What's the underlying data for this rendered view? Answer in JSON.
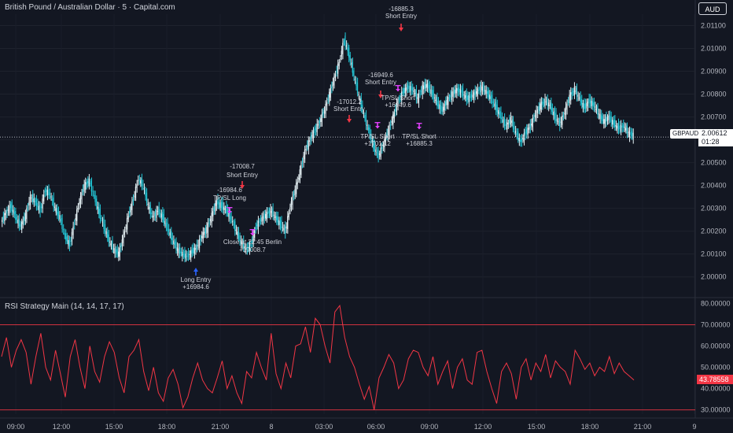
{
  "header": {
    "symbol_title": "British Pound / Australian Dollar · 5 · Capital.com",
    "currency_button": "AUD"
  },
  "price_axis": {
    "ticks": [
      "2.01100",
      "2.01000",
      "2.00900",
      "2.00800",
      "2.00700",
      "2.00600",
      "2.00500",
      "2.00400",
      "2.00300",
      "2.00200",
      "2.00100",
      "2.00000"
    ],
    "symbol_tag": "GBPAUD",
    "current_price": "2.00612",
    "countdown": "01:28"
  },
  "time_axis": {
    "ticks": [
      "09:00",
      "12:00",
      "15:00",
      "18:00",
      "21:00",
      "8",
      "03:00",
      "06:00",
      "09:00",
      "12:00",
      "15:00",
      "18:00",
      "21:00",
      "9"
    ]
  },
  "rsi_panel": {
    "title": "RSI Strategy Main (14, 14, 17, 17)",
    "ticks": [
      "80.00000",
      "70.00000",
      "60.00000",
      "50.00000",
      "40.00000",
      "30.00000"
    ],
    "current_value": "43.78558",
    "upper_band": 70,
    "lower_band": 30
  },
  "colors": {
    "background": "#131722",
    "candle_up": "#e8f4f8",
    "candle_down": "#22c8d8",
    "rsi_line": "#f23645",
    "band": "#f23645",
    "short_entry": "#f23645",
    "long_entry": "#2962ff",
    "tp_sl": "#e040fb"
  },
  "chart_data": {
    "type": "candlestick",
    "price_ylim": [
      1.9993,
      2.0115
    ],
    "rsi_ylim": [
      28,
      82
    ],
    "close_series": [
      2.0024,
      2.0028,
      2.0031,
      2.0026,
      2.0022,
      2.0027,
      2.0035,
      2.0033,
      2.0029,
      2.0038,
      2.0036,
      2.003,
      2.0026,
      2.0018,
      2.0014,
      2.0024,
      2.0033,
      2.004,
      2.0042,
      2.0035,
      2.0028,
      2.0022,
      2.0016,
      2.0012,
      2.001,
      2.0018,
      2.0027,
      2.0034,
      2.0043,
      2.004,
      2.0031,
      2.0026,
      2.0029,
      2.0026,
      2.0021,
      2.0016,
      2.0012,
      2.001,
      2.0009,
      2.0011,
      2.0013,
      2.0018,
      2.0021,
      2.0027,
      2.0033,
      2.0031,
      2.0029,
      2.0025,
      2.002,
      2.0015,
      2.0012,
      2.0014,
      2.0022,
      2.0025,
      2.0027,
      2.0029,
      2.0026,
      2.0023,
      2.002,
      2.0031,
      2.0038,
      2.0046,
      2.0055,
      2.006,
      2.0064,
      2.0068,
      2.0073,
      2.008,
      2.0087,
      2.0094,
      2.0104,
      2.0097,
      2.0088,
      2.0079,
      2.0071,
      2.0064,
      2.0057,
      2.0053,
      2.0058,
      2.0064,
      2.007,
      2.0077,
      2.0081,
      2.0083,
      2.0082,
      2.0078,
      2.0083,
      2.0084,
      2.008,
      2.0076,
      2.0073,
      2.0077,
      2.008,
      2.0082,
      2.0081,
      2.0078,
      2.0079,
      2.0081,
      2.0083,
      2.0081,
      2.0078,
      2.0074,
      2.007,
      2.0066,
      2.0069,
      2.0063,
      2.0059,
      2.0063,
      2.0066,
      2.0071,
      2.0075,
      2.0077,
      2.0075,
      2.007,
      2.0067,
      2.0072,
      2.0079,
      2.0082,
      2.0078,
      2.0074,
      2.0077,
      2.0075,
      2.0071,
      2.0068,
      2.007,
      2.0067,
      2.0065,
      2.0066,
      2.0063,
      2.0062
    ],
    "rsi_series": [
      55,
      64,
      50,
      58,
      63,
      57,
      42,
      55,
      66,
      50,
      44,
      58,
      47,
      36,
      55,
      63,
      50,
      40,
      60,
      48,
      43,
      55,
      62,
      57,
      45,
      38,
      55,
      58,
      63,
      48,
      39,
      50,
      38,
      34,
      45,
      49,
      42,
      31,
      36,
      45,
      52,
      44,
      40,
      38,
      45,
      53,
      40,
      46,
      38,
      33,
      48,
      45,
      57,
      50,
      44,
      66,
      47,
      40,
      52,
      45,
      60,
      61,
      69,
      57,
      73,
      70,
      60,
      52,
      76,
      79,
      64,
      55,
      50,
      42,
      35,
      41,
      30,
      45,
      50,
      56,
      52,
      40,
      44,
      54,
      58,
      57,
      50,
      46,
      55,
      42,
      48,
      53,
      40,
      50,
      54,
      44,
      42,
      57,
      58,
      48,
      40,
      33,
      48,
      52,
      47,
      35,
      50,
      54,
      44,
      52,
      48,
      56,
      45,
      53,
      50,
      48,
      42,
      58,
      54,
      49,
      52,
      46,
      50,
      48,
      55,
      47,
      52,
      48,
      46,
      44
    ],
    "trades": [
      {
        "label": "Long Entry",
        "value": "+16984.6"
      },
      {
        "label": "Short Entry",
        "value": "-17008.7"
      },
      {
        "label": "TP/SL Long",
        "value": "-16984.6"
      },
      {
        "label": "Close at 22:45 Berlin",
        "value": "+17008.7"
      },
      {
        "label": "Short Entry",
        "value": "-17012.2"
      },
      {
        "label": "TP/SL Short",
        "value": "+17012.2"
      },
      {
        "label": "Short Entry",
        "value": "-16949.6"
      },
      {
        "label": "TP/SL Short",
        "value": "+16949.6"
      },
      {
        "label": "Short Entry",
        "value": "-16885.3"
      },
      {
        "label": "TP/SL Short",
        "value": "+16885.3"
      }
    ]
  }
}
